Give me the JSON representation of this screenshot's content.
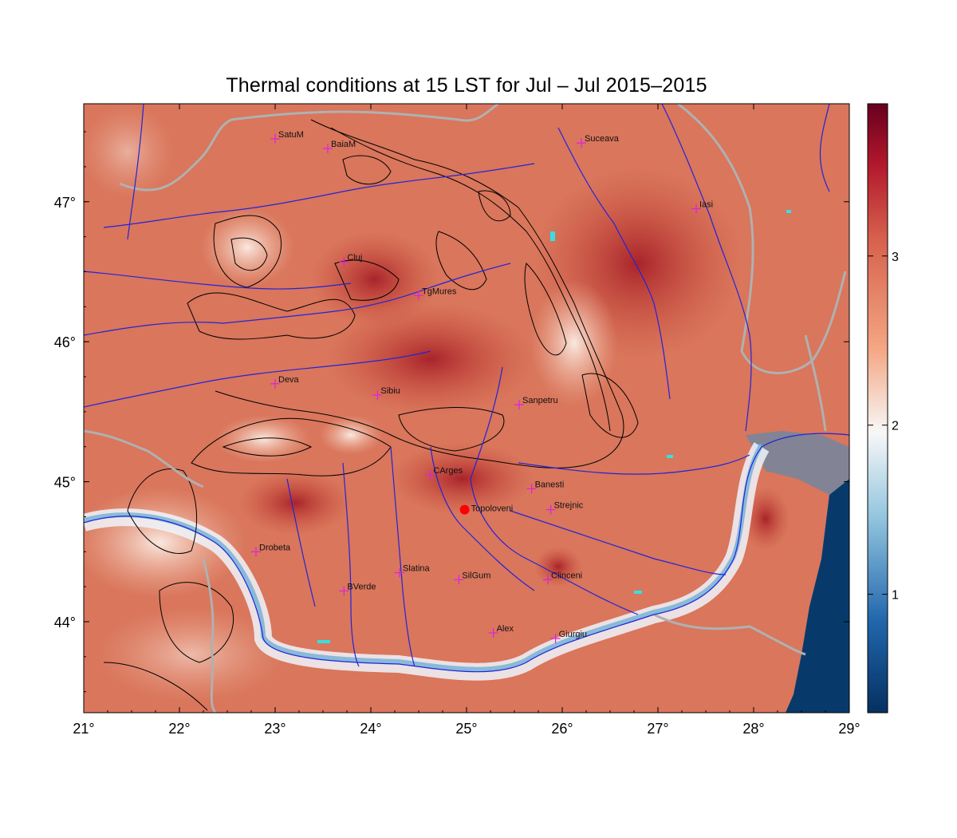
{
  "title": "Thermal conditions at 15 LST for Jul – Jul  2015–2015",
  "map": {
    "lon_ticks": [
      "21°",
      "22°",
      "23°",
      "24°",
      "25°",
      "26°",
      "27°",
      "28°",
      "29°"
    ],
    "lat_ticks": [
      "44°",
      "45°",
      "46°",
      "47°"
    ],
    "lon_range": [
      21,
      29
    ],
    "lat_range": [
      43.35,
      47.7
    ],
    "colors": {
      "river": "#2323d8",
      "border": "#b0b0b0",
      "contour": "#000000",
      "station_marker": "#e020e0",
      "highlight_station": "#ff0000",
      "sea": "#073a6b",
      "lake": "#36e0e0"
    },
    "stations": [
      {
        "name": "SatuM",
        "lon": 23.0,
        "lat": 47.45
      },
      {
        "name": "BaiaM",
        "lon": 23.55,
        "lat": 47.38
      },
      {
        "name": "Suceava",
        "lon": 26.2,
        "lat": 47.42
      },
      {
        "name": "Iasi",
        "lon": 27.4,
        "lat": 46.95
      },
      {
        "name": "Cluj",
        "lon": 23.72,
        "lat": 46.57
      },
      {
        "name": "TgMures",
        "lon": 24.5,
        "lat": 46.33
      },
      {
        "name": "Deva",
        "lon": 23.0,
        "lat": 45.7
      },
      {
        "name": "Sibiu",
        "lon": 24.07,
        "lat": 45.62
      },
      {
        "name": "Sanpetru",
        "lon": 25.55,
        "lat": 45.55
      },
      {
        "name": "CArges",
        "lon": 24.62,
        "lat": 45.05
      },
      {
        "name": "Banesti",
        "lon": 25.68,
        "lat": 44.95
      },
      {
        "name": "Strejnic",
        "lon": 25.88,
        "lat": 44.8
      },
      {
        "name": "Drobeta",
        "lon": 22.8,
        "lat": 44.5
      },
      {
        "name": "Slatina",
        "lon": 24.3,
        "lat": 44.35
      },
      {
        "name": "SilGum",
        "lon": 24.92,
        "lat": 44.3
      },
      {
        "name": "Clinceni",
        "lon": 25.85,
        "lat": 44.3
      },
      {
        "name": "BVerde",
        "lon": 23.72,
        "lat": 44.22
      },
      {
        "name": "Alex",
        "lon": 25.28,
        "lat": 43.92
      },
      {
        "name": "Giurgiu",
        "lon": 25.93,
        "lat": 43.88
      }
    ],
    "highlight_station": {
      "name": "Topoloveni",
      "lon": 24.98,
      "lat": 44.8
    }
  },
  "colorbar": {
    "ticks": [
      "1",
      "2",
      "3"
    ],
    "range": [
      0.3,
      3.9
    ],
    "colormap": "RdBu_r"
  }
}
